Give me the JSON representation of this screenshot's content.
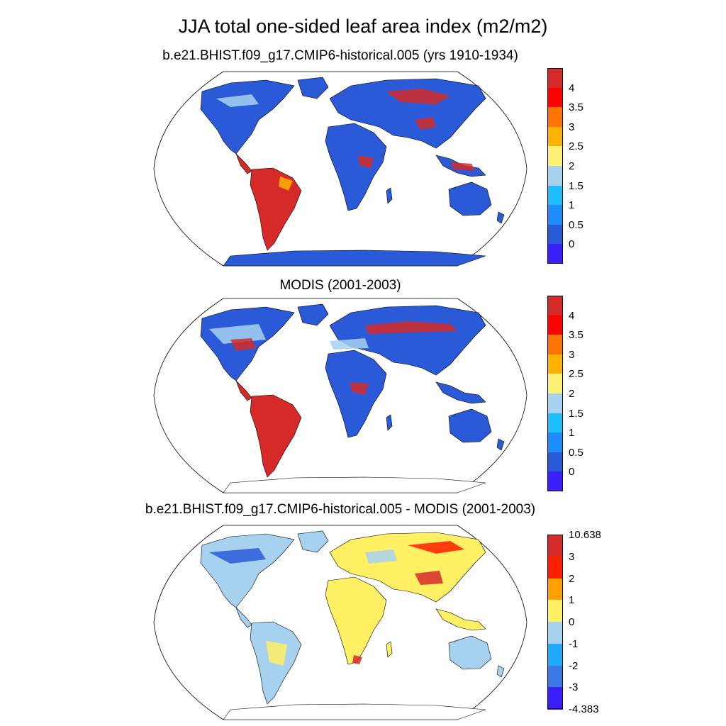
{
  "title": "JJA total one-sided leaf area index (m2/m2)",
  "panels": [
    {
      "title": "b.e21.BHIST.f09_g17.CMIP6-historical.005 (yrs 1910-1934)",
      "colorbar": {
        "labels": [
          "4",
          "3.5",
          "3",
          "2.5",
          "2",
          "1.5",
          "1",
          "0.5",
          "0"
        ],
        "colors": [
          "#d62a28",
          "#ff0000",
          "#ff7400",
          "#ffb200",
          "#fff176",
          "#a6d2f0",
          "#1ebeff",
          "#1e8cff",
          "#2a5ad8",
          "#3c1eff"
        ]
      }
    },
    {
      "title": "MODIS (2001-2003)",
      "colorbar": {
        "labels": [
          "4",
          "3.5",
          "3",
          "2.5",
          "2",
          "1.5",
          "1",
          "0.5",
          "0"
        ],
        "colors": [
          "#d62a28",
          "#ff0000",
          "#ff7400",
          "#ffb200",
          "#fff176",
          "#a6d2f0",
          "#1ebeff",
          "#1e8cff",
          "#2a5ad8",
          "#3c1eff"
        ]
      }
    },
    {
      "title": "b.e21.BHIST.f09_g17.CMIP6-historical.005 - MODIS (2001-2003)",
      "colorbar": {
        "labels": [
          "10.638",
          "3",
          "2",
          "1",
          "0",
          "-1",
          "-2",
          "-3",
          "-4.383"
        ],
        "colors": [
          "#d62a28",
          "#ff1e00",
          "#ffa000",
          "#fff064",
          "#a6d2f0",
          "#1eaaff",
          "#3c78e6",
          "#3c1eff"
        ]
      }
    }
  ],
  "land_fill": {
    "panel1": {
      "south_america": "#d62a28",
      "africa": "#2a5ad8",
      "eurasia": "#2a5ad8",
      "north_america": "#2a5ad8",
      "australia": "#2a5ad8",
      "antarctica": "#2a5ad8"
    },
    "panel2": {
      "south_america": "#d62a28",
      "africa": "#2a5ad8",
      "eurasia": "#2a5ad8",
      "north_america": "#2a5ad8",
      "australia": "#2a5ad8",
      "antarctica": "#ffffff"
    },
    "panel3": {
      "south_america": "#a6d2f0",
      "africa": "#fff064",
      "eurasia": "#fff064",
      "north_america": "#a6d2f0",
      "australia": "#a6d2f0",
      "antarctica": "#ffffff"
    }
  }
}
